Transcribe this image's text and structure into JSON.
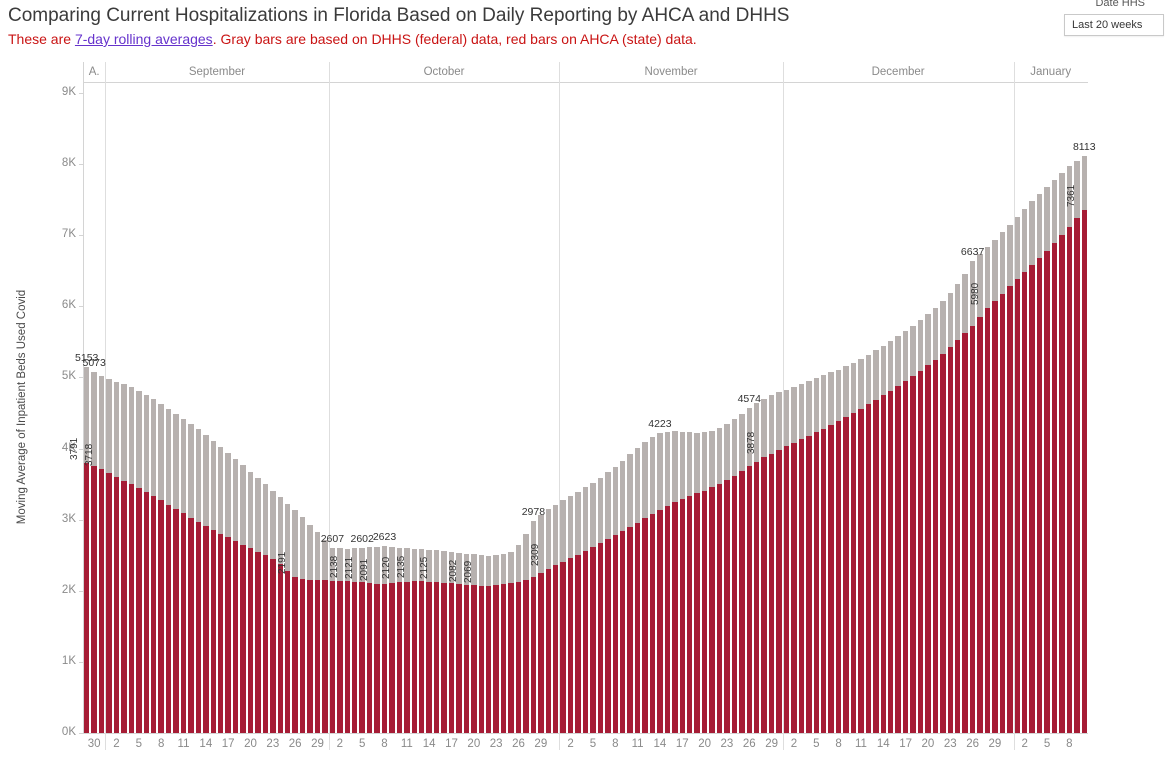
{
  "header": {
    "subtitle_prefix": "These are ",
    "subtitle_link": "7-day rolling averages",
    "subtitle_suffix": ". Gray bars are based on DHHS (federal) data, red bars on AHCA (state) data."
  },
  "filter": {
    "label": "Date HHS",
    "value": "Last 20 weeks"
  },
  "colors": {
    "subtitle": "#c91414",
    "link": "#6633cc",
    "axis_text": "#8a8a8a",
    "data_label": "#333333"
  },
  "chart_data": {
    "type": "bar",
    "title": "Comparing Current Hospitalizations in Florida Based on Daily Reporting by AHCA and DHHS",
    "xlabel": "",
    "ylabel": "Moving Average of Inpatient Beds Used Covid",
    "ylim": [
      0,
      9000
    ],
    "y_ticks": [
      "0K",
      "1K",
      "2K",
      "3K",
      "4K",
      "5K",
      "6K",
      "7K",
      "8K",
      "9K"
    ],
    "grid": "off",
    "legend_note": "Gray bars = DHHS (federal) data, red bars = AHCA (state) data, 7-day rolling averages, last 20 weeks",
    "colors": {
      "dhhs": "#b7b1af",
      "ahca": "#a61c35"
    },
    "months": [
      {
        "label": "A.",
        "count": 3
      },
      {
        "label": "September",
        "count": 30
      },
      {
        "label": "October",
        "count": 31
      },
      {
        "label": "November",
        "count": 30
      },
      {
        "label": "December",
        "count": 31
      },
      {
        "label": "January",
        "count": 10
      }
    ],
    "x_ticks": [
      [
        1,
        "30"
      ],
      [
        4,
        "2"
      ],
      [
        7,
        "5"
      ],
      [
        10,
        "8"
      ],
      [
        13,
        "11"
      ],
      [
        16,
        "14"
      ],
      [
        19,
        "17"
      ],
      [
        22,
        "20"
      ],
      [
        25,
        "23"
      ],
      [
        28,
        "26"
      ],
      [
        31,
        "29"
      ],
      [
        34,
        "2"
      ],
      [
        37,
        "5"
      ],
      [
        40,
        "8"
      ],
      [
        43,
        "11"
      ],
      [
        46,
        "14"
      ],
      [
        49,
        "17"
      ],
      [
        52,
        "20"
      ],
      [
        55,
        "23"
      ],
      [
        58,
        "26"
      ],
      [
        61,
        "29"
      ],
      [
        65,
        "2"
      ],
      [
        68,
        "5"
      ],
      [
        71,
        "8"
      ],
      [
        74,
        "11"
      ],
      [
        77,
        "14"
      ],
      [
        80,
        "17"
      ],
      [
        83,
        "20"
      ],
      [
        86,
        "23"
      ],
      [
        89,
        "26"
      ],
      [
        92,
        "29"
      ],
      [
        95,
        "2"
      ],
      [
        98,
        "5"
      ],
      [
        101,
        "8"
      ],
      [
        104,
        "11"
      ],
      [
        107,
        "14"
      ],
      [
        110,
        "17"
      ],
      [
        113,
        "20"
      ],
      [
        116,
        "23"
      ],
      [
        119,
        "26"
      ],
      [
        122,
        "29"
      ],
      [
        126,
        "2"
      ],
      [
        129,
        "5"
      ],
      [
        132,
        "8"
      ]
    ],
    "series": [
      {
        "name": "DHHS (federal)",
        "values": [
          5153,
          5073,
          5020,
          4975,
          4940,
          4905,
          4860,
          4810,
          4755,
          4695,
          4630,
          4560,
          4490,
          4420,
          4345,
          4270,
          4190,
          4110,
          4025,
          3940,
          3855,
          3765,
          3675,
          3585,
          3495,
          3405,
          3315,
          3225,
          3135,
          3040,
          2930,
          2820,
          2710,
          2607,
          2595,
          2588,
          2595,
          2602,
          2612,
          2618,
          2623,
          2615,
          2605,
          2595,
          2588,
          2582,
          2578,
          2572,
          2560,
          2548,
          2536,
          2524,
          2512,
          2500,
          2495,
          2500,
          2515,
          2540,
          2640,
          2800,
          2978,
          3070,
          3150,
          3210,
          3270,
          3330,
          3390,
          3455,
          3520,
          3590,
          3665,
          3745,
          3830,
          3920,
          4010,
          4090,
          4160,
          4223,
          4240,
          4245,
          4240,
          4230,
          4225,
          4230,
          4250,
          4290,
          4340,
          4410,
          4490,
          4574,
          4640,
          4700,
          4750,
          4790,
          4830,
          4870,
          4910,
          4950,
          4990,
          5030,
          5070,
          5110,
          5160,
          5210,
          5260,
          5320,
          5380,
          5440,
          5510,
          5580,
          5650,
          5730,
          5810,
          5890,
          5980,
          6080,
          6190,
          6310,
          6460,
          6637,
          6730,
          6830,
          6930,
          7040,
          7150,
          7260,
          7370,
          7480,
          7580,
          7680,
          7780,
          7880,
          7970,
          8050,
          8113
        ]
      },
      {
        "name": "AHCA (state)",
        "values": [
          3791,
          3755,
          3718,
          3660,
          3605,
          3550,
          3495,
          3440,
          3385,
          3330,
          3270,
          3210,
          3150,
          3090,
          3030,
          2970,
          2910,
          2855,
          2800,
          2750,
          2700,
          2650,
          2600,
          2550,
          2500,
          2450,
          2380,
          2280,
          2191,
          2170,
          2158,
          2150,
          2145,
          2140,
          2139,
          2138,
          2130,
          2121,
          2105,
          2091,
          2098,
          2110,
          2120,
          2128,
          2135,
          2132,
          2128,
          2125,
          2115,
          2104,
          2093,
          2082,
          2075,
          2069,
          2072,
          2080,
          2092,
          2106,
          2124,
          2150,
          2190,
          2245,
          2309,
          2358,
          2410,
          2460,
          2510,
          2560,
          2615,
          2670,
          2725,
          2780,
          2840,
          2900,
          2960,
          3020,
          3080,
          3140,
          3195,
          3245,
          3290,
          3330,
          3370,
          3410,
          3455,
          3505,
          3560,
          3620,
          3685,
          3750,
          3815,
          3878,
          3930,
          3980,
          4030,
          4080,
          4130,
          4180,
          4230,
          4280,
          4330,
          4385,
          4440,
          4500,
          4560,
          4620,
          4685,
          4750,
          4815,
          4880,
          4950,
          5020,
          5095,
          5170,
          5250,
          5335,
          5425,
          5520,
          5620,
          5725,
          5850,
          5980,
          6080,
          6180,
          6280,
          6380,
          6480,
          6580,
          6680,
          6780,
          6890,
          7000,
          7120,
          7240,
          7361
        ]
      }
    ],
    "labels": {
      "dhhs": [
        [
          0,
          "5153"
        ],
        [
          1,
          "5073"
        ],
        [
          33,
          "2607"
        ],
        [
          37,
          "2602"
        ],
        [
          40,
          "2623"
        ],
        [
          60,
          "2978"
        ],
        [
          77,
          "4223"
        ],
        [
          89,
          "4574"
        ],
        [
          119,
          "6637"
        ],
        [
          134,
          "8113"
        ]
      ],
      "ahca": [
        [
          0,
          "3791"
        ],
        [
          2,
          "3718"
        ],
        [
          28,
          "2191"
        ],
        [
          35,
          "2138"
        ],
        [
          37,
          "2121"
        ],
        [
          39,
          "2091"
        ],
        [
          42,
          "2120"
        ],
        [
          44,
          "2135"
        ],
        [
          47,
          "2125"
        ],
        [
          51,
          "2082"
        ],
        [
          53,
          "2069"
        ],
        [
          62,
          "2309"
        ],
        [
          91,
          "3878"
        ],
        [
          121,
          "5980"
        ],
        [
          134,
          "7361"
        ]
      ]
    }
  }
}
